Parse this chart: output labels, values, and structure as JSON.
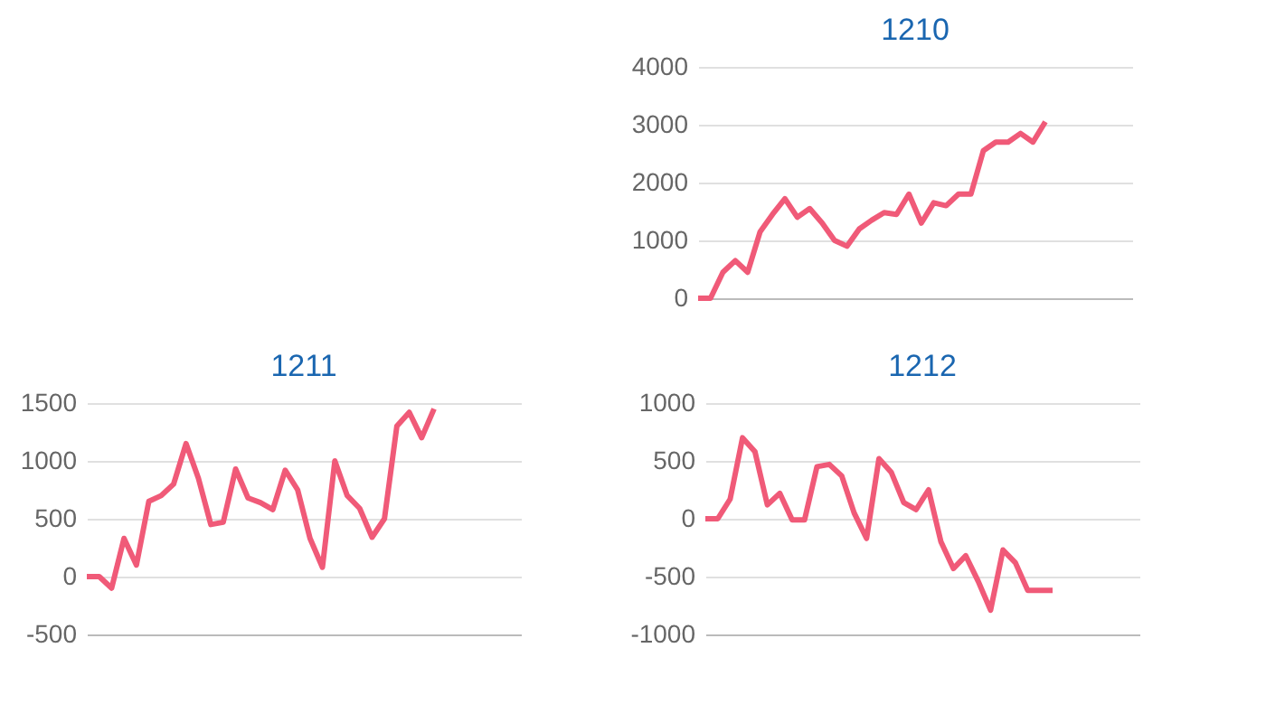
{
  "chart_data": [
    {
      "type": "line",
      "title": "1210",
      "categories": [
        null,
        null,
        null,
        null,
        null,
        null,
        null,
        null,
        null,
        null,
        null,
        null,
        null,
        null,
        null,
        null,
        null,
        null,
        null,
        null,
        null,
        null,
        null,
        null,
        null,
        null,
        null,
        null,
        null,
        null,
        null,
        null,
        null,
        null,
        null,
        null
      ],
      "series": [
        {
          "color": "#f05a78",
          "values": [
            0,
            0,
            450,
            650,
            450,
            1150,
            1450,
            1720,
            1400,
            1550,
            1300,
            1000,
            900,
            1200,
            1350,
            1480,
            1450,
            1800,
            1300,
            1650,
            1600,
            1800,
            1800,
            2550,
            2700,
            2700,
            2850,
            2700,
            3050,
            null,
            null,
            null,
            null,
            null,
            null,
            null
          ]
        }
      ],
      "ylim": [
        0,
        4000
      ],
      "yticks": [
        0,
        1000,
        2000,
        3000,
        4000
      ],
      "grid": "y",
      "legend": false,
      "tick_labels": "y"
    },
    {
      "type": "line",
      "title": "1211",
      "categories": [
        null,
        null,
        null,
        null,
        null,
        null,
        null,
        null,
        null,
        null,
        null,
        null,
        null,
        null,
        null,
        null,
        null,
        null,
        null,
        null,
        null,
        null,
        null,
        null,
        null,
        null,
        null,
        null,
        null,
        null,
        null,
        null,
        null,
        null,
        null,
        null
      ],
      "series": [
        {
          "color": "#f05a78",
          "values": [
            0,
            0,
            -100,
            330,
            100,
            650,
            700,
            800,
            1150,
            850,
            450,
            470,
            930,
            680,
            640,
            580,
            920,
            750,
            330,
            80,
            1000,
            700,
            590,
            340,
            500,
            1300,
            1420,
            1200,
            1450,
            null,
            null,
            null,
            null,
            null,
            null,
            null
          ]
        }
      ],
      "ylim": [
        -500,
        1500
      ],
      "yticks": [
        -500,
        0,
        500,
        1000,
        1500
      ],
      "grid": "y",
      "legend": false,
      "tick_labels": "y"
    },
    {
      "type": "line",
      "title": "1212",
      "categories": [
        null,
        null,
        null,
        null,
        null,
        null,
        null,
        null,
        null,
        null,
        null,
        null,
        null,
        null,
        null,
        null,
        null,
        null,
        null,
        null,
        null,
        null,
        null,
        null,
        null,
        null,
        null,
        null,
        null,
        null,
        null,
        null,
        null,
        null,
        null,
        null
      ],
      "series": [
        {
          "color": "#f05a78",
          "values": [
            0,
            0,
            170,
            700,
            580,
            120,
            220,
            -10,
            -10,
            450,
            470,
            370,
            50,
            -170,
            520,
            400,
            140,
            80,
            250,
            -200,
            -430,
            -320,
            -540,
            -790,
            -270,
            -380,
            -620,
            -620,
            -620,
            null,
            null,
            null,
            null,
            null,
            null,
            null
          ]
        }
      ],
      "ylim": [
        -1000,
        1000
      ],
      "yticks": [
        -1000,
        -500,
        0,
        500,
        1000
      ],
      "grid": "y",
      "legend": false,
      "tick_labels": "y"
    }
  ]
}
